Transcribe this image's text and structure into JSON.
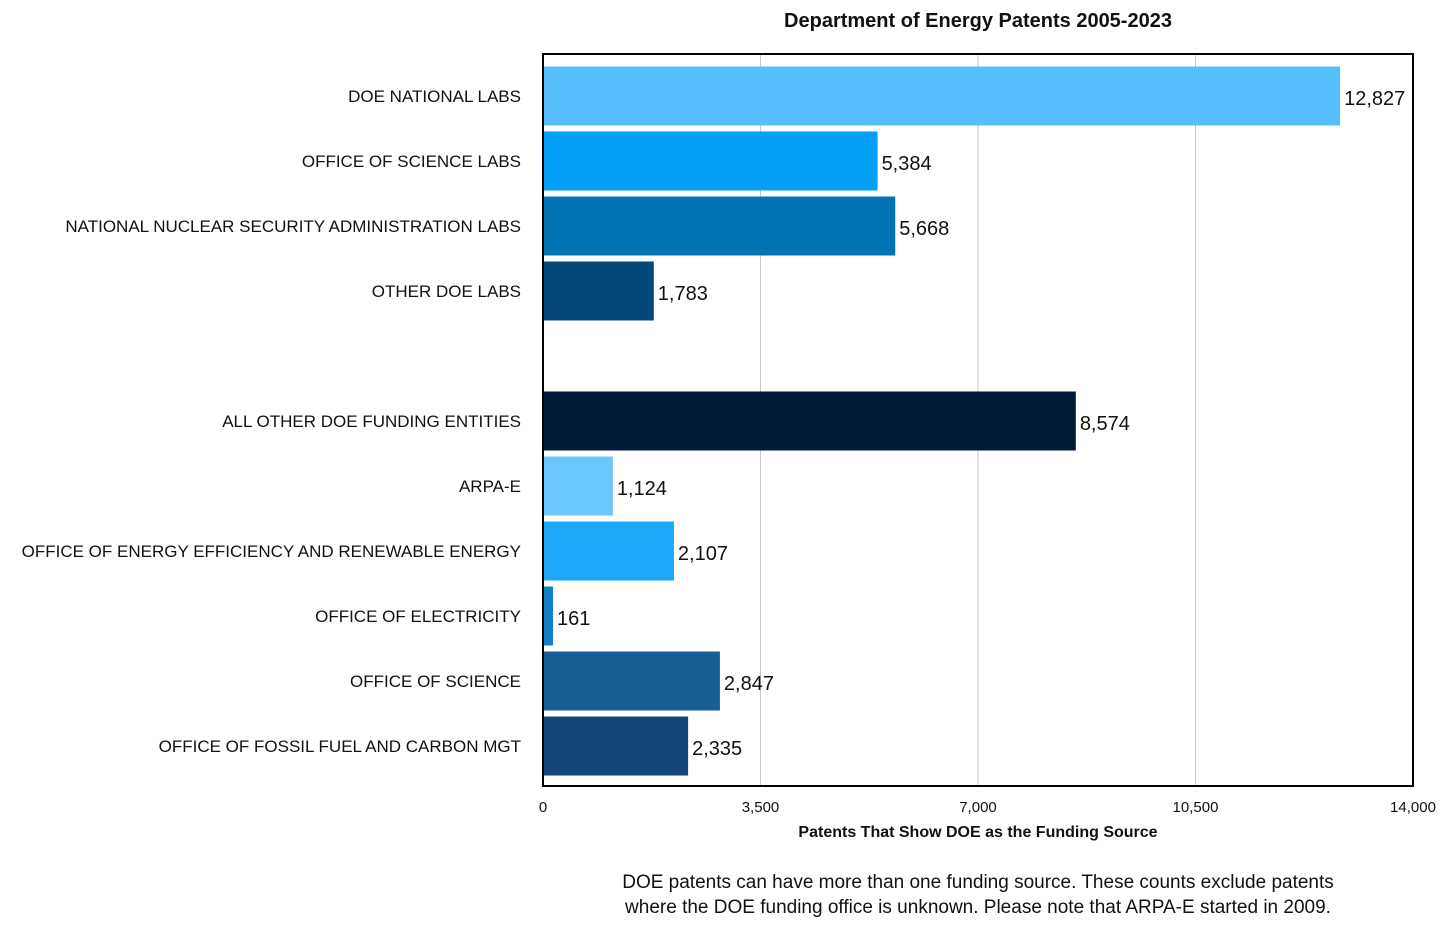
{
  "chart_data": {
    "type": "bar",
    "orientation": "horizontal",
    "title": "Department of Energy Patents 2005-2023",
    "xlabel": "Patents That Show DOE as the Funding Source",
    "ylabel": "",
    "xlim": [
      0,
      14000
    ],
    "xticks": [
      "0",
      "3,500",
      "7,000",
      "10,500",
      "14,000"
    ],
    "xtick_values": [
      0,
      3500,
      7000,
      10500,
      14000
    ],
    "grid": "vertical",
    "groups": [
      {
        "bars": [
          {
            "label": "DOE NATIONAL LABS",
            "value": 12827,
            "value_label": "12,827",
            "color": "#56BFFB"
          },
          {
            "label": "OFFICE OF SCIENCE LABS",
            "value": 5384,
            "value_label": "5,384",
            "color": "#049FF8"
          },
          {
            "label": "NATIONAL NUCLEAR SECURITY ADMINISTRATION LABS",
            "value": 5668,
            "value_label": "5,668",
            "color": "#0473B5"
          },
          {
            "label": "OTHER DOE LABS",
            "value": 1783,
            "value_label": "1,783",
            "color": "#03487A"
          }
        ]
      },
      {
        "bars": [
          {
            "label": "ALL OTHER DOE FUNDING ENTITIES",
            "value": 8574,
            "value_label": "8,574",
            "color": "#021938"
          },
          {
            "label": "ARPA-E",
            "value": 1124,
            "value_label": "1,124",
            "color": "#6CC8FC"
          },
          {
            "label": "OFFICE OF ENERGY EFFICIENCY AND RENEWABLE ENERGY",
            "value": 2107,
            "value_label": "2,107",
            "color": "#1EA8F9"
          },
          {
            "label": "OFFICE OF ELECTRICITY",
            "value": 161,
            "value_label": "161",
            "color": "#1180C6"
          },
          {
            "label": "OFFICE OF SCIENCE",
            "value": 2847,
            "value_label": "2,847",
            "color": "#175F94"
          },
          {
            "label": "OFFICE OF FOSSIL FUEL AND CARBON MGT",
            "value": 2335,
            "value_label": "2,335",
            "color": "#124677"
          }
        ]
      }
    ]
  },
  "footnote": {
    "line1": "DOE patents can have more than one funding source.  These counts exclude patents",
    "line2": "where the DOE funding office is unknown. Please note that ARPA-E started in 2009."
  }
}
